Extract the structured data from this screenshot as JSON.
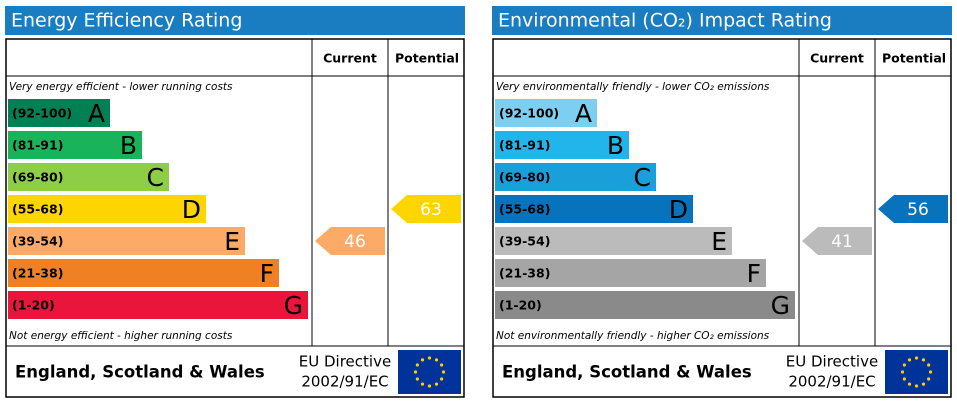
{
  "chart_data": [
    {
      "type": "epc",
      "title": "Energy Efficiency Rating",
      "columns": [
        "Current",
        "Potential"
      ],
      "top_note": "Very energy efficient - lower running costs",
      "bottom_note": "Not energy efficient - higher running costs",
      "bands": [
        {
          "range": "(92-100)",
          "letter": "A",
          "color": "#008054"
        },
        {
          "range": "(81-91)",
          "letter": "B",
          "color": "#19b459"
        },
        {
          "range": "(69-80)",
          "letter": "C",
          "color": "#8dce46"
        },
        {
          "range": "(55-68)",
          "letter": "D",
          "color": "#ffd500"
        },
        {
          "range": "(39-54)",
          "letter": "E",
          "color": "#fcaa65"
        },
        {
          "range": "(21-38)",
          "letter": "F",
          "color": "#ef8023"
        },
        {
          "range": "(1-20)",
          "letter": "G",
          "color": "#e9153b"
        }
      ],
      "current": 46,
      "potential": 63,
      "footer": "England, Scotland & Wales",
      "directive": [
        "EU Directive",
        "2002/91/EC"
      ]
    },
    {
      "type": "epc",
      "title": "Environmental (CO₂) Impact Rating",
      "columns": [
        "Current",
        "Potential"
      ],
      "top_note": "Very environmentally friendly - lower CO₂ emissions",
      "bottom_note": "Not environmentally friendly - higher CO₂ emissions",
      "bands": [
        {
          "range": "(92-100)",
          "letter": "A",
          "color": "#7dcff2"
        },
        {
          "range": "(81-91)",
          "letter": "B",
          "color": "#22b5eb"
        },
        {
          "range": "(69-80)",
          "letter": "C",
          "color": "#1a9fdb"
        },
        {
          "range": "(55-68)",
          "letter": "D",
          "color": "#0873bd"
        },
        {
          "range": "(39-54)",
          "letter": "E",
          "color": "#bbbbbb"
        },
        {
          "range": "(21-38)",
          "letter": "F",
          "color": "#a5a5a5"
        },
        {
          "range": "(1-20)",
          "letter": "G",
          "color": "#8a8a8a"
        }
      ],
      "current": 41,
      "potential": 56,
      "footer": "England, Scotland & Wales",
      "directive": [
        "EU Directive",
        "2002/91/EC"
      ]
    }
  ]
}
